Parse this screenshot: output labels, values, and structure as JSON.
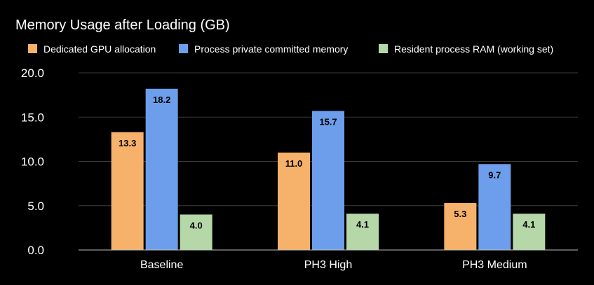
{
  "chart_data": {
    "type": "bar",
    "title": "Memory Usage after Loading (GB)",
    "xlabel": "",
    "ylabel": "",
    "categories": [
      "Baseline",
      "PH3 High",
      "PH3 Medium"
    ],
    "series": [
      {
        "name": "Dedicated GPU allocation",
        "color": "#f6b26b",
        "values": [
          13.3,
          11.0,
          5.3
        ]
      },
      {
        "name": "Process private committed memory",
        "color": "#6d9eeb",
        "values": [
          18.2,
          15.7,
          9.7
        ]
      },
      {
        "name": "Resident process RAM (working set)",
        "color": "#b6d7a8",
        "values": [
          4.0,
          4.1,
          4.1
        ]
      }
    ],
    "ylim": [
      0,
      20
    ],
    "yticks": [
      "0.0",
      "5.0",
      "10.0",
      "15.0",
      "20.0"
    ],
    "ytick_values": [
      0,
      5,
      10,
      15,
      20
    ],
    "grid": true,
    "legend_position": "top-left",
    "data_labels": true
  }
}
